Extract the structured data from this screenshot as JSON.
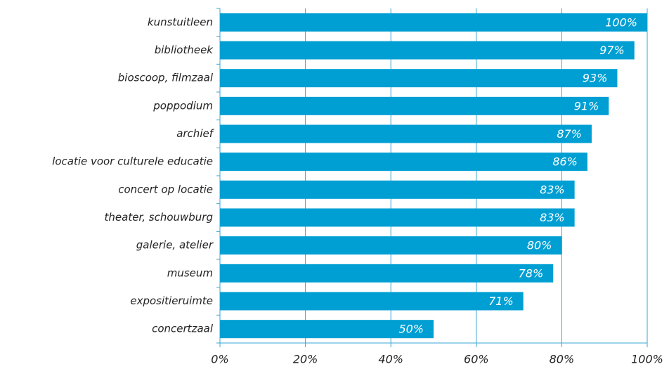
{
  "chart_data": {
    "type": "bar",
    "orientation": "horizontal",
    "categories": [
      "kunstuitleen",
      "bibliotheek",
      "bioscoop, filmzaal",
      "poppodium",
      "archief",
      "locatie voor culturele educatie",
      "concert op locatie",
      "theater, schouwburg",
      "galerie, atelier",
      "museum",
      "expositieruimte",
      "concertzaal"
    ],
    "values": [
      100,
      97,
      93,
      91,
      87,
      86,
      83,
      83,
      80,
      78,
      71,
      50
    ],
    "value_labels": [
      "100%",
      "97%",
      "93%",
      "91%",
      "87%",
      "86%",
      "83%",
      "83%",
      "80%",
      "78%",
      "71%",
      "50%"
    ],
    "color": "#009fd3",
    "xlim": [
      0,
      100
    ],
    "xticks": [
      {
        "value": 0,
        "label": "0%"
      },
      {
        "value": 20,
        "label": "20%"
      },
      {
        "value": 40,
        "label": "40%"
      },
      {
        "value": 60,
        "label": "60%"
      },
      {
        "value": 80,
        "label": "80%"
      },
      {
        "value": 100,
        "label": "100%"
      }
    ],
    "grid": true
  }
}
